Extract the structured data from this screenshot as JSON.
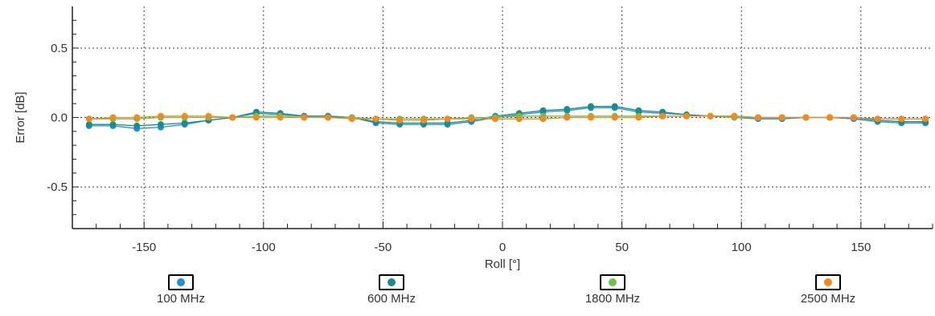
{
  "chart_data": {
    "type": "line",
    "title": "",
    "xlabel": "Roll [°]",
    "ylabel": "Error [dB]",
    "xlim": [
      -180,
      180
    ],
    "ylim": [
      -0.8,
      0.8
    ],
    "xticks": [
      -150,
      -100,
      -50,
      0,
      50,
      100,
      150
    ],
    "xtick_labels": [
      "-150",
      "-100",
      "-50",
      "0",
      "50",
      "100",
      "150"
    ],
    "yticks": [
      -0.5,
      0.0,
      0.5
    ],
    "ytick_labels": [
      "-0.5",
      "0.0",
      "0.5"
    ],
    "grid": true,
    "legend_position": "bottom",
    "x": [
      -173,
      -163,
      -153,
      -143,
      -133,
      -123,
      -113,
      -103,
      -93,
      -83,
      -73,
      -63,
      -53,
      -43,
      -33,
      -23,
      -13,
      -3,
      7,
      17,
      27,
      37,
      47,
      57,
      67,
      77,
      87,
      97,
      107,
      117,
      127,
      137,
      147,
      157,
      167,
      177
    ],
    "series": [
      {
        "name": "100 MHz",
        "color": "#1f8fd6",
        "values": [
          -0.06,
          -0.06,
          -0.08,
          -0.07,
          -0.05,
          -0.02,
          0.0,
          0.03,
          0.02,
          0.01,
          0.01,
          0.0,
          -0.04,
          -0.05,
          -0.05,
          -0.05,
          -0.03,
          0.0,
          0.02,
          0.04,
          0.05,
          0.07,
          0.07,
          0.04,
          0.03,
          0.02,
          0.01,
          0.0,
          -0.01,
          -0.01,
          0.0,
          0.0,
          -0.01,
          -0.03,
          -0.04,
          -0.04
        ]
      },
      {
        "name": "600 MHz",
        "color": "#1a8c8c",
        "values": [
          -0.05,
          -0.05,
          -0.06,
          -0.05,
          -0.04,
          -0.02,
          0.0,
          0.04,
          0.03,
          0.01,
          0.01,
          0.0,
          -0.03,
          -0.04,
          -0.04,
          -0.04,
          -0.02,
          0.01,
          0.03,
          0.05,
          0.06,
          0.08,
          0.08,
          0.05,
          0.04,
          0.02,
          0.01,
          0.01,
          0.0,
          0.0,
          0.0,
          0.0,
          0.0,
          -0.02,
          -0.03,
          -0.03
        ]
      },
      {
        "name": "1800 MHz",
        "color": "#6cc24a",
        "values": [
          -0.01,
          -0.01,
          -0.01,
          0.0,
          0.0,
          0.0,
          0.0,
          0.01,
          0.01,
          0.0,
          0.0,
          0.0,
          -0.01,
          -0.01,
          -0.01,
          -0.01,
          0.0,
          0.0,
          0.01,
          0.01,
          0.01,
          0.01,
          0.01,
          0.01,
          0.01,
          0.01,
          0.01,
          0.0,
          0.0,
          0.0,
          0.0,
          0.0,
          0.0,
          -0.01,
          -0.01,
          -0.01
        ]
      },
      {
        "name": "2500 MHz",
        "color": "#f28a1e",
        "values": [
          -0.01,
          0.0,
          0.0,
          0.01,
          0.01,
          0.01,
          0.0,
          0.0,
          0.0,
          0.0,
          0.0,
          -0.01,
          -0.01,
          -0.02,
          -0.02,
          -0.01,
          -0.01,
          -0.01,
          -0.01,
          -0.01,
          0.0,
          0.0,
          0.0,
          0.0,
          0.01,
          0.01,
          0.01,
          0.01,
          0.0,
          0.0,
          0.0,
          0.0,
          0.0,
          -0.01,
          -0.01,
          -0.01
        ]
      }
    ]
  }
}
